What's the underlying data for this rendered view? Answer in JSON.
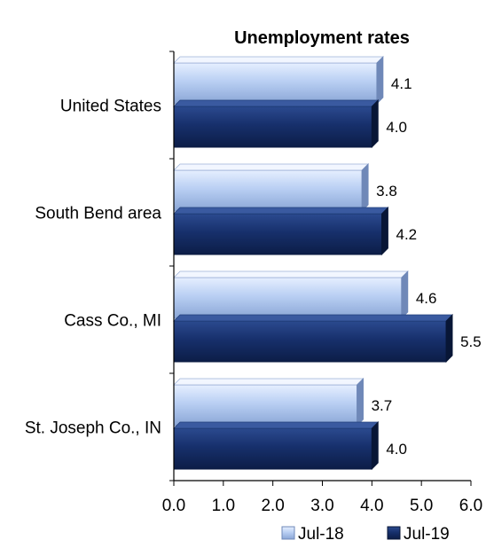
{
  "chart_data": {
    "type": "bar",
    "orientation": "horizontal",
    "title": "Unemployment rates",
    "categories": [
      "United States",
      "South Bend area",
      "Cass Co., MI",
      "St. Joseph Co., IN"
    ],
    "series": [
      {
        "name": "Jul-18",
        "values": [
          4.1,
          3.8,
          4.6,
          3.7
        ],
        "color": "#b7cdf0"
      },
      {
        "name": "Jul-19",
        "values": [
          4.0,
          4.2,
          5.5,
          4.0
        ],
        "color": "#16306e"
      }
    ],
    "x_ticks": [
      "0.0",
      "1.0",
      "2.0",
      "3.0",
      "4.0",
      "5.0",
      "6.0"
    ],
    "xlim": [
      0,
      6
    ],
    "grid": false,
    "legend_position": "bottom-right",
    "data_labels": true
  }
}
